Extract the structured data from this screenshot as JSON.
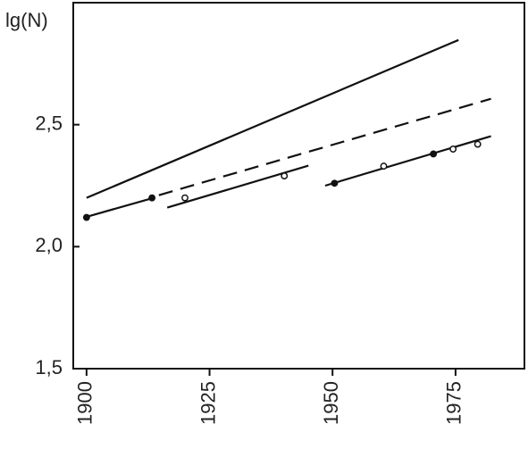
{
  "chart_data": {
    "type": "line",
    "y_label": "lg(N)",
    "xlim": [
      1897.3,
      1989
    ],
    "ylim": [
      1.5,
      3.0
    ],
    "xticks": [
      1900,
      1925,
      1950,
      1975
    ],
    "yticks": [
      {
        "value": 1.5,
        "label": "1,5"
      },
      {
        "value": 2.0,
        "label": "2,0"
      },
      {
        "value": 2.5,
        "label": "2,5"
      }
    ],
    "series": [
      {
        "mode": "line",
        "dash": false,
        "color": "#111",
        "x": [
          1900,
          1975.6
        ],
        "values": [
          2.2,
          2.847
        ]
      },
      {
        "mode": "line",
        "dash": true,
        "color": "#111",
        "x": [
          1914.7,
          1982.2
        ],
        "values": [
          2.211,
          2.606
        ]
      },
      {
        "mode": "line",
        "dash": false,
        "color": "#111",
        "x": [
          1899.6,
          1913.6
        ],
        "values": [
          2.12,
          2.2
        ]
      },
      {
        "mode": "line",
        "dash": false,
        "color": "#111",
        "x": [
          1916.4,
          1945.1
        ],
        "values": [
          2.16,
          2.332
        ]
      },
      {
        "mode": "line",
        "dash": false,
        "color": "#111",
        "x": [
          1948.5,
          1982.2
        ],
        "values": [
          2.25,
          2.453
        ]
      },
      {
        "mode": "markers",
        "filled": true,
        "color": "#111",
        "x": [
          1900,
          1913.3,
          1950.4,
          1970.5
        ],
        "values": [
          2.12,
          2.2,
          2.26,
          2.38
        ]
      },
      {
        "mode": "markers",
        "filled": false,
        "color": "#111",
        "x": [
          1920,
          1940.2,
          1960.4,
          1974.5,
          1979.5
        ],
        "values": [
          2.2,
          2.29,
          2.33,
          2.4,
          2.42
        ]
      }
    ]
  }
}
